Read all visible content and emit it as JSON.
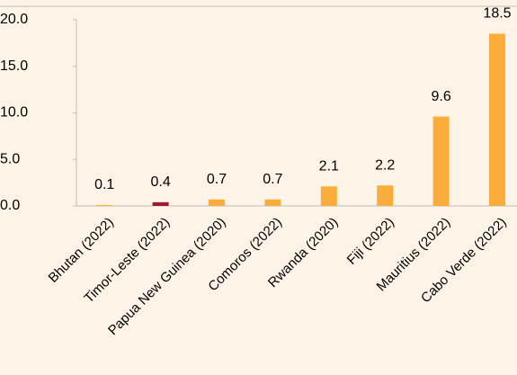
{
  "chart_data": {
    "type": "bar",
    "categories": [
      "Bhutan (2022)",
      "Timor-Leste (2022)",
      "Papua New Guinea (2020)",
      "Comoros (2022)",
      "Rwanda (2020)",
      "Fiji (2022)",
      "Mauritius (2022)",
      "Cabo Verde (2022)"
    ],
    "values": [
      0.1,
      0.4,
      0.7,
      0.7,
      2.1,
      2.2,
      9.6,
      18.5
    ],
    "colors": [
      "#fbad3c",
      "#9b1b30",
      "#fbad3c",
      "#fbad3c",
      "#fbad3c",
      "#fbad3c",
      "#fbad3c",
      "#fbad3c"
    ],
    "ylim": [
      0,
      20
    ],
    "yticks": [
      {
        "value": 0,
        "label": "0.0"
      },
      {
        "value": 5,
        "label": "5.0"
      },
      {
        "value": 10,
        "label": "10.0"
      },
      {
        "value": 15,
        "label": "15.0"
      },
      {
        "value": 20,
        "label": "20.0"
      }
    ],
    "grid": false
  }
}
